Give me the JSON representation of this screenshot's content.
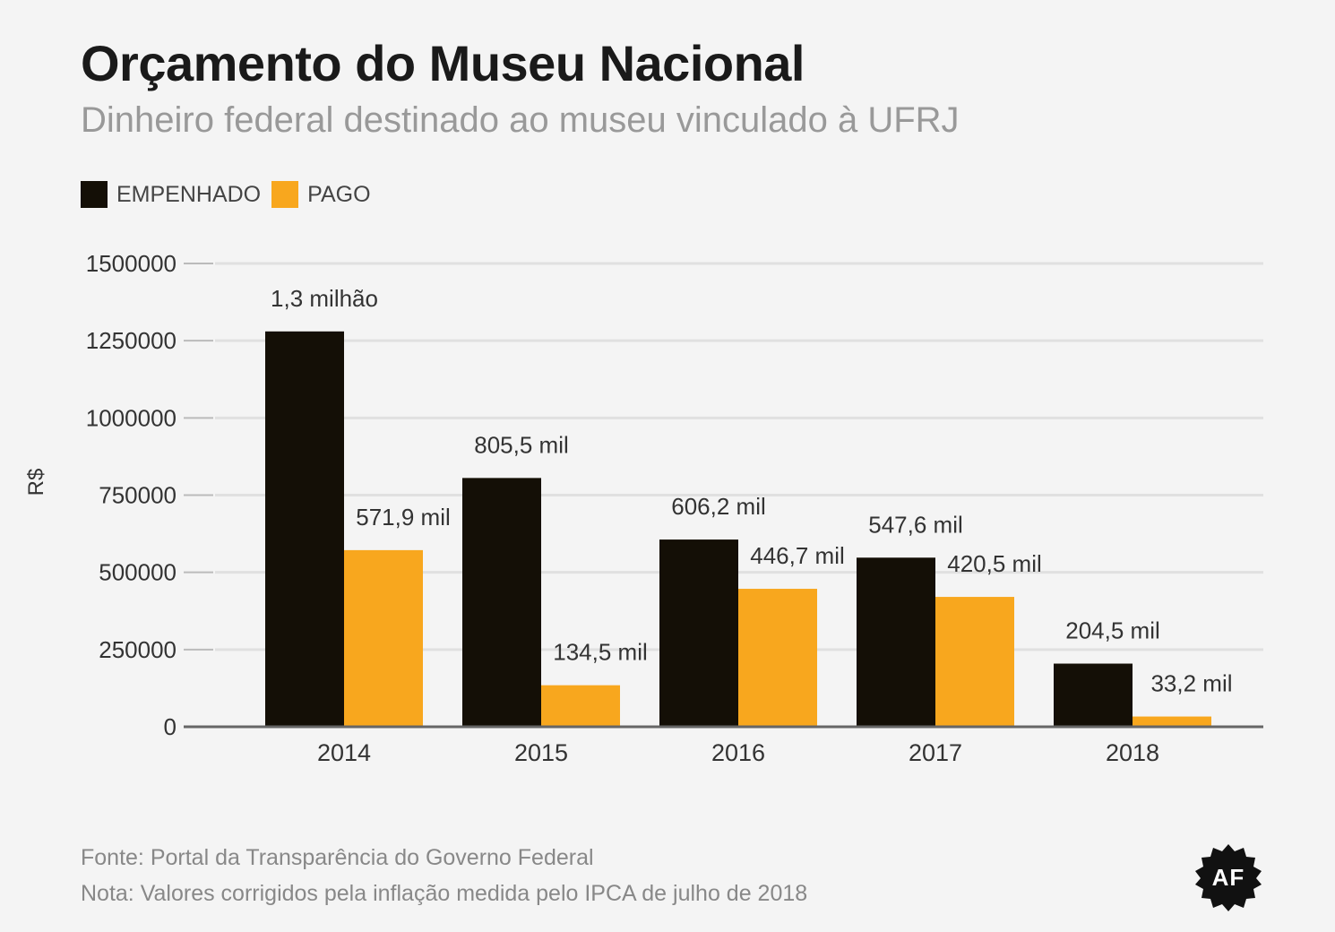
{
  "header": {
    "title": "Orçamento do Museu Nacional",
    "subtitle": "Dinheiro federal destinado ao museu vinculado à UFRJ"
  },
  "footer": {
    "source": "Fonte: Portal da Transparência do Governo Federal",
    "note": "Nota: Valores corrigidos pela inflação medida pelo IPCA de julho de 2018"
  },
  "logo": {
    "text": "AF",
    "icon": "af-badge-icon"
  },
  "colors": {
    "empenhado": "#140f06",
    "pago": "#f8a71e",
    "grid": "#e0e0e0",
    "axis": "#666666"
  },
  "chart_data": {
    "type": "bar",
    "categories": [
      "2014",
      "2015",
      "2016",
      "2017",
      "2018"
    ],
    "series": [
      {
        "name": "EMPENHADO",
        "values": [
          1280000,
          805500,
          606200,
          547600,
          204500
        ],
        "labels": [
          "1,3 milhão",
          "805,5 mil",
          "606,2 mil",
          "547,6 mil",
          "204,5 mil"
        ]
      },
      {
        "name": "PAGO",
        "values": [
          571900,
          134500,
          446700,
          420500,
          33200
        ],
        "labels": [
          "571,9 mil",
          "134,5 mil",
          "446,7 mil",
          "420,5 mil",
          "33,2 mil"
        ]
      }
    ],
    "ylabel": "R$",
    "ylim": [
      0,
      1500000
    ],
    "yticks": [
      "0",
      "250000",
      "500000",
      "750000",
      "1000000",
      "1250000",
      "1500000"
    ],
    "grid": true,
    "legend": "top-left"
  }
}
